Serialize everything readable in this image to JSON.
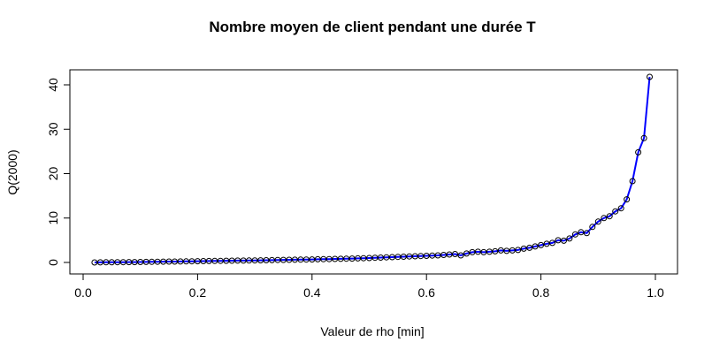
{
  "chart_data": {
    "type": "line",
    "title": "Nombre moyen de client pendant une durée T",
    "xlabel": "Valeur de rho [min]",
    "ylabel": "Q(2000)",
    "xlim": [
      0.0,
      1.0
    ],
    "ylim": [
      0,
      40
    ],
    "xticks": [
      0.0,
      0.2,
      0.4,
      0.6,
      0.8,
      1.0
    ],
    "xtick_labels": [
      "0.0",
      "0.2",
      "0.4",
      "0.6",
      "0.8",
      "1.0"
    ],
    "yticks": [
      0,
      10,
      20,
      30,
      40
    ],
    "ytick_labels": [
      "0",
      "10",
      "20",
      "30",
      "40"
    ],
    "grid": false,
    "legend": "none",
    "series": [
      {
        "line_color": "#0000ff",
        "marker": "open-circle",
        "marker_color": "#000000",
        "x": [
          0.02,
          0.03,
          0.04,
          0.05,
          0.06,
          0.07,
          0.08,
          0.09,
          0.1,
          0.11,
          0.12,
          0.13,
          0.14,
          0.15,
          0.16,
          0.17,
          0.18,
          0.19,
          0.2,
          0.21,
          0.22,
          0.23,
          0.24,
          0.25,
          0.26,
          0.27,
          0.28,
          0.29,
          0.3,
          0.31,
          0.32,
          0.33,
          0.34,
          0.35,
          0.36,
          0.37,
          0.38,
          0.39,
          0.4,
          0.41,
          0.42,
          0.43,
          0.44,
          0.45,
          0.46,
          0.47,
          0.48,
          0.49,
          0.5,
          0.51,
          0.52,
          0.53,
          0.54,
          0.55,
          0.56,
          0.57,
          0.58,
          0.59,
          0.6,
          0.61,
          0.62,
          0.63,
          0.64,
          0.65,
          0.66,
          0.67,
          0.68,
          0.69,
          0.7,
          0.71,
          0.72,
          0.73,
          0.74,
          0.75,
          0.76,
          0.77,
          0.78,
          0.79,
          0.8,
          0.81,
          0.82,
          0.83,
          0.84,
          0.85,
          0.86,
          0.87,
          0.88,
          0.89,
          0.9,
          0.91,
          0.92,
          0.93,
          0.94,
          0.95,
          0.96,
          0.97,
          0.98,
          0.99
        ],
        "y": [
          0.0,
          0.02,
          0.03,
          0.04,
          0.05,
          0.06,
          0.07,
          0.08,
          0.1,
          0.11,
          0.13,
          0.15,
          0.17,
          0.19,
          0.2,
          0.22,
          0.24,
          0.26,
          0.27,
          0.29,
          0.31,
          0.33,
          0.35,
          0.37,
          0.39,
          0.41,
          0.42,
          0.44,
          0.46,
          0.48,
          0.5,
          0.52,
          0.55,
          0.57,
          0.59,
          0.61,
          0.63,
          0.66,
          0.68,
          0.71,
          0.73,
          0.76,
          0.79,
          0.82,
          0.85,
          0.88,
          0.92,
          0.95,
          1.0,
          1.05,
          1.1,
          1.15,
          1.2,
          1.25,
          1.3,
          1.35,
          1.4,
          1.45,
          1.5,
          1.55,
          1.6,
          1.7,
          1.8,
          1.9,
          1.6,
          2.0,
          2.3,
          2.4,
          2.3,
          2.4,
          2.5,
          2.7,
          2.6,
          2.7,
          2.8,
          3.1,
          3.3,
          3.6,
          3.9,
          4.2,
          4.4,
          5.0,
          4.9,
          5.4,
          6.3,
          6.8,
          6.6,
          8.0,
          9.2,
          10.0,
          10.4,
          11.5,
          12.2,
          14.2,
          18.3,
          24.8,
          28.0,
          41.8
        ]
      }
    ]
  }
}
